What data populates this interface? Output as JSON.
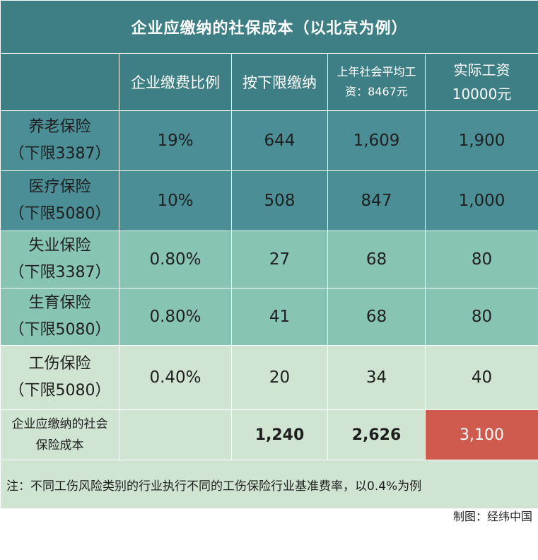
{
  "title": "企业应缴纳的社保成本（以北京为例）",
  "headers": {
    "blank": "",
    "rate": "企业缴费比例",
    "min_base": "按下限缴纳",
    "avg_base_line1": "上年社会平均工",
    "avg_base_line2": "资：8467元",
    "actual_line1": "实际工资",
    "actual_line2": "10000元"
  },
  "rows": [
    {
      "name": "养老保险",
      "note": "（下限3387）",
      "rate": "19%",
      "min": "644",
      "avg": "1,609",
      "actual": "1,900"
    },
    {
      "name": "医疗保险",
      "note": "（下限5080）",
      "rate": "10%",
      "min": "508",
      "avg": "847",
      "actual": "1,000"
    },
    {
      "name": "失业保险",
      "note": "（下限3387）",
      "rate": "0.80%",
      "min": "27",
      "avg": "68",
      "actual": "80"
    },
    {
      "name": "生育保险",
      "note": "（下限5080）",
      "rate": "0.80%",
      "min": "41",
      "avg": "68",
      "actual": "80"
    },
    {
      "name": "工伤保险",
      "note": "（下限5080）",
      "rate": "0.40%",
      "min": "20",
      "avg": "34",
      "actual": "40"
    }
  ],
  "total": {
    "label_line1": "企业应缴纳的社会",
    "label_line2": "保险成本",
    "min": "1,240",
    "avg": "2,626",
    "actual": "3,100"
  },
  "footnote": "注：不同工伤风险类别的行业执行不同的工伤保险行业基准费率，以0.4%为例",
  "source": "制图：经纬中国",
  "colors": {
    "header": "#3e7f86",
    "dark_rows": "#4b8e96",
    "mid_rows": "#88c4b4",
    "light_rows": "#cfe4d1",
    "highlight": "#cf5a4e"
  },
  "chart_data": {
    "type": "table",
    "title": "企业应缴纳的社保成本（以北京为例）",
    "columns": [
      "企业缴费比例",
      "按下限缴纳",
      "上年社会平均工资：8467元",
      "实际工资10000元"
    ],
    "rows": [
      {
        "item": "养老保险（下限3387）",
        "values": [
          "19%",
          644,
          1609,
          1900
        ]
      },
      {
        "item": "医疗保险（下限5080）",
        "values": [
          "10%",
          508,
          847,
          1000
        ]
      },
      {
        "item": "失业保险（下限3387）",
        "values": [
          "0.80%",
          27,
          68,
          80
        ]
      },
      {
        "item": "生育保险（下限5080）",
        "values": [
          "0.80%",
          41,
          68,
          80
        ]
      },
      {
        "item": "工伤保险（下限5080）",
        "values": [
          "0.40%",
          20,
          34,
          40
        ]
      },
      {
        "item": "企业应缴纳的社会保险成本",
        "values": [
          "",
          1240,
          2626,
          3100
        ]
      }
    ]
  }
}
